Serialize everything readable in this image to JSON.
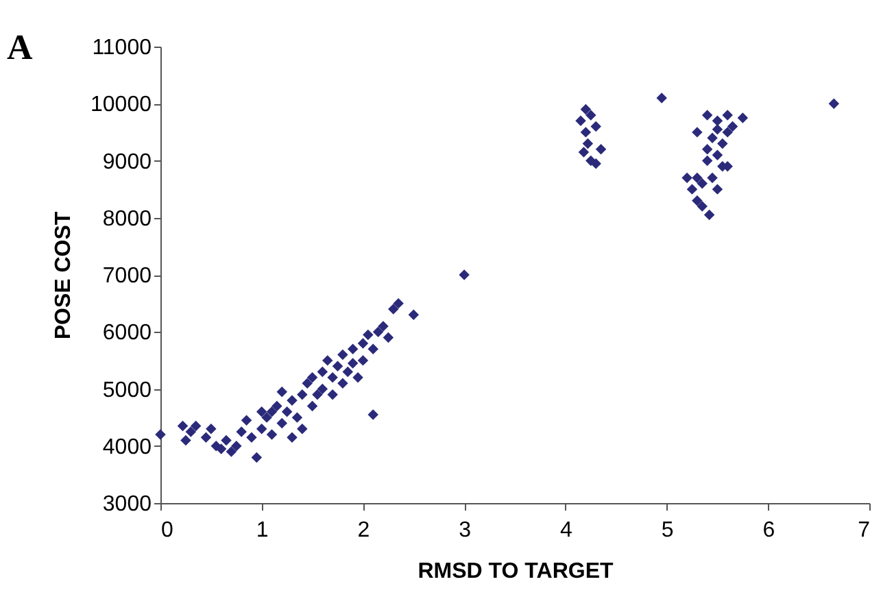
{
  "chart_data": {
    "type": "scatter",
    "xlabel": "RMSD TO TARGET",
    "ylabel": "POSE COST",
    "annotations": [
      "A"
    ],
    "xlim": [
      0,
      7
    ],
    "xticks": [
      0,
      1,
      2,
      3,
      4,
      5,
      6,
      7
    ],
    "ylim": [
      3000,
      11000
    ],
    "yticks": [
      3000,
      4000,
      5000,
      6000,
      7000,
      8000,
      9000,
      10000,
      11000
    ],
    "grid": false,
    "marker": "diamond",
    "series": [
      {
        "color": "#2b2a7a",
        "x": [
          0,
          0.22,
          0.25,
          0.3,
          0.35,
          0.45,
          0.5,
          0.55,
          0.6,
          0.65,
          0.7,
          0.75,
          0.8,
          0.85,
          0.9,
          0.95,
          1.0,
          1.0,
          1.05,
          1.1,
          1.1,
          1.15,
          1.2,
          1.2,
          1.25,
          1.3,
          1.3,
          1.35,
          1.4,
          1.4,
          1.45,
          1.5,
          1.5,
          1.55,
          1.6,
          1.6,
          1.65,
          1.7,
          1.7,
          1.75,
          1.8,
          1.8,
          1.85,
          1.9,
          1.9,
          1.95,
          2.0,
          2.0,
          2.05,
          2.1,
          2.1,
          2.15,
          2.2,
          2.25,
          2.3,
          2.35,
          2.5,
          3.0,
          4.2,
          4.15,
          4.25,
          4.2,
          4.3,
          4.22,
          4.18,
          4.35,
          4.25,
          4.3,
          4.95,
          6.65,
          5.3,
          5.4,
          5.5,
          5.6,
          5.75,
          5.45,
          5.55,
          5.6,
          5.5,
          5.4,
          5.55,
          5.3,
          5.2,
          5.25,
          5.35,
          5.45,
          5.5,
          5.3,
          5.35,
          5.42,
          5.6,
          5.65,
          5.4,
          5.5
        ],
        "values": [
          4200,
          4350,
          4100,
          4250,
          4350,
          4150,
          4300,
          4000,
          3950,
          4100,
          3900,
          4000,
          4250,
          4450,
          4150,
          3800,
          4600,
          4300,
          4500,
          4600,
          4200,
          4700,
          4400,
          4950,
          4600,
          4150,
          4800,
          4500,
          4900,
          4300,
          5100,
          4700,
          5200,
          4900,
          5300,
          5000,
          5500,
          5200,
          4900,
          5400,
          5600,
          5100,
          5300,
          5700,
          5450,
          5200,
          5800,
          5500,
          5950,
          5700,
          4550,
          6000,
          6100,
          5900,
          6400,
          6500,
          6300,
          7000,
          9900,
          9700,
          9800,
          9500,
          9600,
          9300,
          9150,
          9200,
          9000,
          8950,
          10100,
          10000,
          9500,
          9800,
          9700,
          9800,
          9750,
          9400,
          9300,
          9500,
          9100,
          9000,
          8900,
          8700,
          8700,
          8500,
          8600,
          8700,
          8500,
          8300,
          8200,
          8050,
          8900,
          9600,
          9200,
          9550
        ]
      }
    ]
  }
}
